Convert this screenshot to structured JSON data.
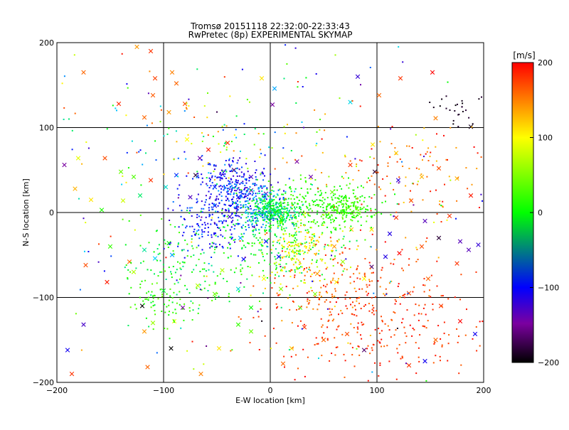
{
  "chart_data": {
    "type": "scatter",
    "title": "Tromsø 20151118 22:32:00-22:33:43",
    "subtitle": "RwPretec (8p) EXPERIMENTAL SKYMAP",
    "xlabel": "E-W location [km]",
    "ylabel": "N-S location [km]",
    "xlim": [
      -200,
      200
    ],
    "ylim": [
      -200,
      200
    ],
    "xticks": [
      -200,
      -100,
      0,
      100,
      200
    ],
    "yticks": [
      -200,
      -100,
      0,
      100,
      200
    ],
    "grid": true,
    "colorbar": {
      "label": "[m/s]",
      "min": -200,
      "max": 200,
      "ticks": [
        200,
        100,
        0,
        -100,
        -200
      ]
    },
    "series": [
      {
        "marker": "cross",
        "points": [
          [
            -175,
            165,
            160
          ],
          [
            -125,
            195,
            140
          ],
          [
            -112,
            190,
            180
          ],
          [
            -108,
            158,
            175
          ],
          [
            -110,
            138,
            165
          ],
          [
            -92,
            165,
            150
          ],
          [
            -88,
            152,
            160
          ],
          [
            -80,
            128,
            170
          ],
          [
            -142,
            128,
            185
          ],
          [
            -118,
            112,
            160
          ],
          [
            -95,
            118,
            140
          ],
          [
            -78,
            86,
            100
          ],
          [
            -58,
            74,
            190
          ],
          [
            -40,
            82,
            180
          ],
          [
            4,
            146,
            -60
          ],
          [
            2,
            127,
            -170
          ],
          [
            -8,
            158,
            110
          ],
          [
            75,
            130,
            -45
          ],
          [
            82,
            160,
            -130
          ],
          [
            102,
            138,
            160
          ],
          [
            122,
            158,
            180
          ],
          [
            152,
            165,
            200
          ],
          [
            155,
            111,
            150
          ],
          [
            188,
            101,
            -195
          ],
          [
            -193,
            56,
            -170
          ],
          [
            -180,
            64,
            90
          ],
          [
            -155,
            64,
            170
          ],
          [
            -140,
            48,
            40
          ],
          [
            -128,
            42,
            30
          ],
          [
            -112,
            38,
            180
          ],
          [
            -98,
            30,
            -40
          ],
          [
            -88,
            44,
            -90
          ],
          [
            -183,
            28,
            130
          ],
          [
            -168,
            15,
            110
          ],
          [
            -158,
            3,
            10
          ],
          [
            -138,
            14,
            80
          ],
          [
            -122,
            20,
            -20
          ],
          [
            -70,
            44,
            -190
          ],
          [
            -75,
            18,
            -145
          ],
          [
            -52,
            30,
            -90
          ],
          [
            -38,
            -5,
            -135
          ],
          [
            -30,
            18,
            -110
          ],
          [
            -18,
            26,
            -170
          ],
          [
            -28,
            -30,
            -60
          ],
          [
            -4,
            -34,
            -100
          ],
          [
            8,
            -52,
            -100
          ],
          [
            -92,
            -50,
            -60
          ],
          [
            -95,
            -36,
            0
          ],
          [
            -150,
            -40,
            20
          ],
          [
            -118,
            -44,
            -30
          ],
          [
            -108,
            -54,
            -50
          ],
          [
            -132,
            -58,
            160
          ],
          [
            -128,
            -70,
            70
          ],
          [
            -173,
            -62,
            170
          ],
          [
            -153,
            -82,
            190
          ],
          [
            -100,
            -92,
            -10
          ],
          [
            -120,
            -110,
            -200
          ],
          [
            -82,
            -112,
            -170
          ],
          [
            -110,
            -130,
            60
          ],
          [
            -90,
            -128,
            100
          ],
          [
            -118,
            -140,
            140
          ],
          [
            -93,
            -160,
            -200
          ],
          [
            -115,
            -182,
            160
          ],
          [
            -175,
            -132,
            -140
          ],
          [
            -190,
            -162,
            -110
          ],
          [
            -186,
            -190,
            180
          ],
          [
            -68,
            -86,
            70
          ],
          [
            -52,
            -96,
            40
          ],
          [
            -18,
            -112,
            0
          ],
          [
            -30,
            -132,
            20
          ],
          [
            28,
            -112,
            30
          ],
          [
            42,
            -96,
            50
          ],
          [
            62,
            -82,
            110
          ],
          [
            88,
            -78,
            100
          ],
          [
            95,
            -64,
            -180
          ],
          [
            108,
            -52,
            -120
          ],
          [
            121,
            -48,
            200
          ],
          [
            142,
            -40,
            170
          ],
          [
            158,
            -30,
            -190
          ],
          [
            178,
            -34,
            -150
          ],
          [
            186,
            -44,
            -150
          ],
          [
            195,
            -38,
            -130
          ],
          [
            175,
            -60,
            180
          ],
          [
            148,
            -78,
            160
          ],
          [
            130,
            -95,
            170
          ],
          [
            160,
            -110,
            180
          ],
          [
            178,
            -128,
            200
          ],
          [
            192,
            -143,
            -110
          ],
          [
            155,
            -150,
            160
          ],
          [
            145,
            -175,
            -110
          ],
          [
            130,
            -180,
            180
          ],
          [
            88,
            -162,
            -180
          ],
          [
            72,
            -143,
            170
          ],
          [
            50,
            -150,
            160
          ],
          [
            32,
            -135,
            180
          ],
          [
            20,
            -160,
            120
          ],
          [
            12,
            -178,
            160
          ],
          [
            -18,
            -140,
            40
          ],
          [
            -48,
            -160,
            110
          ],
          [
            -65,
            -190,
            150
          ],
          [
            60,
            -40,
            140
          ],
          [
            76,
            -20,
            120
          ],
          [
            95,
            -20,
            110
          ],
          [
            118,
            -6,
            180
          ],
          [
            132,
            14,
            170
          ],
          [
            142,
            42,
            130
          ],
          [
            158,
            52,
            170
          ],
          [
            175,
            40,
            130
          ],
          [
            188,
            20,
            190
          ],
          [
            168,
            -4,
            180
          ],
          [
            120,
            38,
            -130
          ],
          [
            98,
            48,
            -190
          ],
          [
            75,
            56,
            180
          ],
          [
            118,
            70,
            120
          ],
          [
            96,
            80,
            110
          ],
          [
            145,
            -10,
            -150
          ],
          [
            -25,
            -55,
            -100
          ],
          [
            -45,
            -68,
            70
          ],
          [
            -6,
            -78,
            100
          ],
          [
            -52,
            8,
            -120
          ],
          [
            -66,
            64,
            -160
          ],
          [
            -34,
            50,
            -180
          ],
          [
            -18,
            42,
            -140
          ],
          [
            -4,
            22,
            -150
          ],
          [
            25,
            60,
            -170
          ],
          [
            38,
            42,
            -160
          ],
          [
            58,
            24,
            40
          ],
          [
            112,
            -25,
            -120
          ],
          [
            68,
            -58,
            60
          ],
          [
            44,
            -72,
            140
          ],
          [
            10,
            -90,
            50
          ],
          [
            -30,
            -90,
            -40
          ]
        ]
      },
      {
        "marker": "dot",
        "clusters": [
          {
            "cx": -30,
            "cy": 20,
            "sx": 18,
            "sy": 16,
            "n": 260,
            "vmin": -140,
            "vmax": -60
          },
          {
            "cx": -8,
            "cy": 4,
            "sx": 14,
            "sy": 14,
            "n": 160,
            "vmin": -90,
            "vmax": -30
          },
          {
            "cx": -60,
            "cy": -15,
            "sx": 16,
            "sy": 18,
            "n": 120,
            "vmin": -130,
            "vmax": -80
          },
          {
            "cx": 3,
            "cy": 2,
            "sx": 10,
            "sy": 9,
            "n": 240,
            "vmin": -40,
            "vmax": 0
          },
          {
            "cx": 42,
            "cy": 6,
            "sx": 28,
            "sy": 16,
            "n": 260,
            "vmin": -5,
            "vmax": 35
          },
          {
            "cx": 72,
            "cy": 5,
            "sx": 12,
            "sy": 9,
            "n": 160,
            "vmin": 0,
            "vmax": 45
          },
          {
            "cx": 5,
            "cy": -32,
            "sx": 26,
            "sy": 20,
            "n": 200,
            "vmin": -30,
            "vmax": 20
          },
          {
            "cx": 28,
            "cy": -45,
            "sx": 18,
            "sy": 20,
            "n": 160,
            "vmin": 70,
            "vmax": 125
          },
          {
            "cx": 60,
            "cy": -85,
            "sx": 38,
            "sy": 28,
            "n": 190,
            "vmin": 130,
            "vmax": 200
          },
          {
            "cx": 108,
            "cy": -135,
            "sx": 55,
            "sy": 40,
            "n": 240,
            "vmin": 160,
            "vmax": 200
          },
          {
            "cx": -72,
            "cy": -62,
            "sx": 30,
            "sy": 32,
            "n": 170,
            "vmin": -30,
            "vmax": 40
          },
          {
            "cx": -42,
            "cy": 82,
            "sx": 48,
            "sy": 24,
            "n": 90,
            "vmin": -120,
            "vmax": 170
          },
          {
            "cx": 130,
            "cy": 48,
            "sx": 42,
            "sy": 32,
            "n": 110,
            "vmin": 120,
            "vmax": 200
          },
          {
            "cx": 0,
            "cy": 0,
            "sx": 115,
            "sy": 110,
            "n": 260,
            "vmin": -200,
            "vmax": 200
          },
          {
            "cx": -40,
            "cy": 45,
            "sx": 16,
            "sy": 10,
            "n": 80,
            "vmin": -140,
            "vmax": -80
          },
          {
            "cx": -105,
            "cy": -100,
            "sx": 18,
            "sy": 14,
            "n": 60,
            "vmin": 0,
            "vmax": 40
          },
          {
            "cx": 178,
            "cy": 120,
            "sx": 12,
            "sy": 12,
            "n": 25,
            "vmin": -200,
            "vmax": -190
          }
        ]
      }
    ]
  }
}
